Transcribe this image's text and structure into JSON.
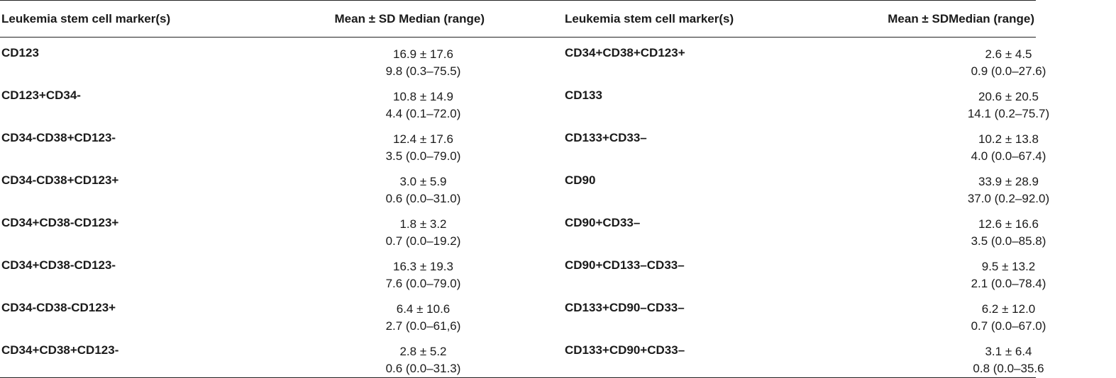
{
  "table": {
    "headers": [
      "Leukemia stem cell marker(s)",
      "Mean ± SD Median (range)",
      "Leukemia stem cell marker(s)",
      "Mean ± SDMedian (range)"
    ],
    "rows": [
      {
        "left": {
          "marker": "CD123",
          "mean_sd": "16.9 ± 17.6",
          "median_range": "9.8 (0.3–75.5)"
        },
        "right": {
          "marker": "CD34+CD38+CD123+",
          "mean_sd": "2.6 ± 4.5",
          "median_range": "0.9 (0.0–27.6)"
        }
      },
      {
        "left": {
          "marker": "CD123+CD34-",
          "mean_sd": "10.8 ± 14.9",
          "median_range": "4.4 (0.1–72.0)"
        },
        "right": {
          "marker": "CD133",
          "mean_sd": "20.6 ± 20.5",
          "median_range": "14.1 (0.2–75.7)"
        }
      },
      {
        "left": {
          "marker": "CD34-CD38+CD123-",
          "mean_sd": "12.4 ± 17.6",
          "median_range": "3.5 (0.0–79.0)"
        },
        "right": {
          "marker": "CD133+CD33–",
          "mean_sd": "10.2 ± 13.8",
          "median_range": "4.0 (0.0–67.4)"
        }
      },
      {
        "left": {
          "marker": "CD34-CD38+CD123+",
          "mean_sd": "3.0 ± 5.9",
          "median_range": "0.6 (0.0–31.0)"
        },
        "right": {
          "marker": "CD90",
          "mean_sd": "33.9 ± 28.9",
          "median_range": "37.0 (0.2–92.0)"
        }
      },
      {
        "left": {
          "marker": "CD34+CD38-CD123+",
          "mean_sd": "1.8 ± 3.2",
          "median_range": "0.7 (0.0–19.2)"
        },
        "right": {
          "marker": "CD90+CD33–",
          "mean_sd": "12.6 ± 16.6",
          "median_range": "3.5 (0.0–85.8)"
        }
      },
      {
        "left": {
          "marker": "CD34+CD38-CD123-",
          "mean_sd": "16.3 ± 19.3",
          "median_range": "7.6 (0.0–79.0)"
        },
        "right": {
          "marker": "CD90+CD133–CD33–",
          "mean_sd": "9.5 ± 13.2",
          "median_range": "2.1 (0.0–78.4)"
        }
      },
      {
        "left": {
          "marker": "CD34-CD38-CD123+",
          "mean_sd": "6.4 ± 10.6",
          "median_range": "2.7 (0.0–61,6)"
        },
        "right": {
          "marker": "CD133+CD90–CD33–",
          "mean_sd": "6.2 ± 12.0",
          "median_range": "0.7 (0.0–67.0)"
        }
      },
      {
        "left": {
          "marker": "CD34+CD38+CD123-",
          "mean_sd": "2.8 ± 5.2",
          "median_range": "0.6 (0.0–31.3)"
        },
        "right": {
          "marker": "CD133+CD90+CD33–",
          "mean_sd": "3.1 ± 6.4",
          "median_range": "0.8 (0.0–35.6"
        }
      }
    ]
  }
}
